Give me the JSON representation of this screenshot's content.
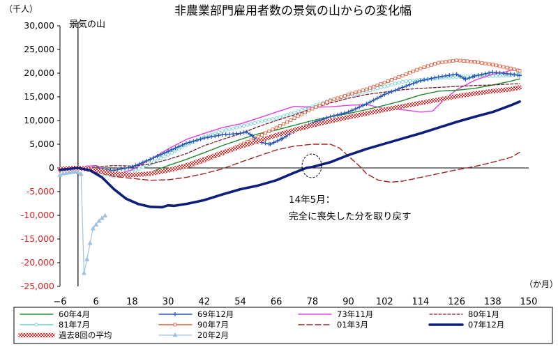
{
  "chart_data": {
    "type": "line",
    "title": "非農業部門雇用者数の景気の山からの変化幅",
    "y_unit_label": "（千人）",
    "x_unit_label": "（か月）",
    "peak_label": "景気の山",
    "annotation": [
      "14年5月：",
      "完全に喪失した分を取り戻す"
    ],
    "xlim": [
      -6,
      150
    ],
    "ylim": [
      -25000,
      30000
    ],
    "x_ticks": [
      -6,
      6,
      18,
      30,
      42,
      54,
      66,
      78,
      90,
      102,
      114,
      126,
      138,
      150
    ],
    "y_ticks": [
      30000,
      25000,
      20000,
      15000,
      10000,
      5000,
      0,
      -5000,
      -10000,
      -15000,
      -20000,
      -25000
    ],
    "y_tick_labels": [
      "30,000",
      "25,000",
      "20,000",
      "15,000",
      "10,000",
      "5,000",
      "0",
      "-5,000",
      "-10,000",
      "-15,000",
      "-20,000",
      "-25,000"
    ],
    "series": [
      {
        "name": "60年4月",
        "color": "#1f8a2a",
        "style": "solid",
        "points": [
          [
            -6,
            -400
          ],
          [
            0,
            0
          ],
          [
            6,
            -300
          ],
          [
            12,
            -1600
          ],
          [
            18,
            -1700
          ],
          [
            24,
            -900
          ],
          [
            30,
            500
          ],
          [
            36,
            1800
          ],
          [
            42,
            3200
          ],
          [
            48,
            4700
          ],
          [
            54,
            6000
          ],
          [
            60,
            7200
          ],
          [
            66,
            8000
          ],
          [
            72,
            9000
          ],
          [
            78,
            10000
          ],
          [
            84,
            10800
          ],
          [
            90,
            11500
          ],
          [
            96,
            12300
          ],
          [
            102,
            13200
          ],
          [
            108,
            14200
          ],
          [
            114,
            15400
          ],
          [
            120,
            16200
          ],
          [
            126,
            16400
          ],
          [
            132,
            16800
          ],
          [
            138,
            17500
          ],
          [
            144,
            18300
          ],
          [
            147,
            18800
          ]
        ]
      },
      {
        "name": "69年12月",
        "color": "#2455b0",
        "style": "plus",
        "points": [
          [
            -6,
            -300
          ],
          [
            0,
            0
          ],
          [
            6,
            -300
          ],
          [
            12,
            -500
          ],
          [
            18,
            200
          ],
          [
            24,
            1800
          ],
          [
            30,
            3500
          ],
          [
            36,
            5200
          ],
          [
            42,
            6300
          ],
          [
            48,
            7000
          ],
          [
            54,
            7300
          ],
          [
            56,
            7600
          ],
          [
            58,
            6800
          ],
          [
            60,
            5500
          ],
          [
            64,
            5000
          ],
          [
            68,
            6200
          ],
          [
            72,
            7800
          ],
          [
            78,
            9500
          ],
          [
            84,
            10800
          ],
          [
            90,
            11800
          ],
          [
            96,
            13500
          ],
          [
            102,
            15500
          ],
          [
            108,
            17000
          ],
          [
            114,
            18400
          ],
          [
            120,
            19200
          ],
          [
            126,
            19800
          ],
          [
            129,
            18700
          ],
          [
            132,
            19400
          ],
          [
            138,
            20200
          ],
          [
            144,
            19800
          ],
          [
            147,
            19500
          ]
        ]
      },
      {
        "name": "73年11月",
        "color": "#e040e0",
        "style": "solid",
        "points": [
          [
            -6,
            -300
          ],
          [
            0,
            0
          ],
          [
            3,
            400
          ],
          [
            6,
            500
          ],
          [
            9,
            -500
          ],
          [
            12,
            -1500
          ],
          [
            18,
            -400
          ],
          [
            24,
            1800
          ],
          [
            30,
            4000
          ],
          [
            36,
            6000
          ],
          [
            42,
            7300
          ],
          [
            48,
            8500
          ],
          [
            54,
            9300
          ],
          [
            60,
            10500
          ],
          [
            66,
            11800
          ],
          [
            72,
            13000
          ],
          [
            78,
            12800
          ],
          [
            84,
            12900
          ],
          [
            90,
            13200
          ],
          [
            96,
            13400
          ],
          [
            102,
            12500
          ],
          [
            108,
            12300
          ],
          [
            114,
            11800
          ],
          [
            118,
            12000
          ],
          [
            122,
            14500
          ],
          [
            126,
            16500
          ],
          [
            132,
            18500
          ],
          [
            138,
            19800
          ],
          [
            142,
            20200
          ],
          [
            145,
            20800
          ]
        ]
      },
      {
        "name": "80年1月",
        "color": "#7a1e2e",
        "style": "dash",
        "points": [
          [
            -6,
            -300
          ],
          [
            0,
            0
          ],
          [
            6,
            200
          ],
          [
            12,
            500
          ],
          [
            18,
            400
          ],
          [
            24,
            800
          ],
          [
            30,
            1800
          ],
          [
            36,
            3000
          ],
          [
            42,
            4700
          ],
          [
            48,
            6000
          ],
          [
            54,
            7200
          ],
          [
            60,
            8700
          ],
          [
            66,
            10000
          ],
          [
            72,
            11200
          ],
          [
            78,
            12500
          ],
          [
            84,
            13700
          ],
          [
            90,
            14700
          ],
          [
            96,
            15500
          ],
          [
            102,
            16000
          ],
          [
            108,
            16500
          ],
          [
            114,
            16800
          ],
          [
            120,
            17000
          ],
          [
            126,
            17200
          ],
          [
            132,
            17400
          ],
          [
            138,
            17500
          ],
          [
            144,
            17700
          ],
          [
            147,
            17800
          ]
        ]
      },
      {
        "name": "81年7月",
        "color": "#66d0d0",
        "style": "circle",
        "points": [
          [
            -6,
            -400
          ],
          [
            0,
            0
          ],
          [
            6,
            -800
          ],
          [
            12,
            -1800
          ],
          [
            18,
            -800
          ],
          [
            24,
            800
          ],
          [
            30,
            2800
          ],
          [
            36,
            4800
          ],
          [
            42,
            6500
          ],
          [
            48,
            7800
          ],
          [
            54,
            8700
          ],
          [
            60,
            9700
          ],
          [
            66,
            10500
          ],
          [
            72,
            11700
          ],
          [
            78,
            13000
          ],
          [
            84,
            14300
          ],
          [
            90,
            15300
          ],
          [
            96,
            16200
          ],
          [
            102,
            17200
          ],
          [
            108,
            18200
          ],
          [
            114,
            18600
          ],
          [
            120,
            18900
          ],
          [
            126,
            19200
          ],
          [
            132,
            19400
          ],
          [
            138,
            19400
          ],
          [
            144,
            19600
          ],
          [
            147,
            19800
          ]
        ]
      },
      {
        "name": "90年7月",
        "color": "#e05a3a",
        "style": "square",
        "points": [
          [
            -6,
            -400
          ],
          [
            0,
            0
          ],
          [
            6,
            -700
          ],
          [
            12,
            -1300
          ],
          [
            18,
            -1500
          ],
          [
            24,
            -1200
          ],
          [
            30,
            -600
          ],
          [
            36,
            200
          ],
          [
            42,
            1500
          ],
          [
            48,
            3000
          ],
          [
            54,
            4800
          ],
          [
            60,
            6600
          ],
          [
            66,
            8500
          ],
          [
            72,
            10500
          ],
          [
            78,
            12500
          ],
          [
            84,
            14200
          ],
          [
            90,
            15500
          ],
          [
            96,
            16600
          ],
          [
            102,
            18000
          ],
          [
            108,
            19500
          ],
          [
            114,
            21000
          ],
          [
            120,
            22200
          ],
          [
            126,
            22700
          ],
          [
            132,
            22400
          ],
          [
            138,
            21800
          ],
          [
            144,
            21000
          ],
          [
            147,
            20500
          ]
        ]
      },
      {
        "name": "01年3月",
        "color": "#a02020",
        "style": "longdash",
        "points": [
          [
            -6,
            -200
          ],
          [
            0,
            0
          ],
          [
            6,
            -900
          ],
          [
            12,
            -1800
          ],
          [
            18,
            -2200
          ],
          [
            24,
            -2600
          ],
          [
            30,
            -2500
          ],
          [
            36,
            -2000
          ],
          [
            42,
            -1200
          ],
          [
            48,
            -200
          ],
          [
            54,
            1200
          ],
          [
            60,
            2500
          ],
          [
            66,
            3800
          ],
          [
            72,
            4600
          ],
          [
            78,
            5000
          ],
          [
            84,
            5000
          ],
          [
            87,
            4200
          ],
          [
            90,
            2500
          ],
          [
            94,
            200
          ],
          [
            96,
            -1200
          ],
          [
            100,
            -2600
          ],
          [
            104,
            -3000
          ],
          [
            108,
            -2800
          ],
          [
            114,
            -2000
          ],
          [
            120,
            -1200
          ],
          [
            126,
            -400
          ],
          [
            132,
            300
          ],
          [
            138,
            1200
          ],
          [
            144,
            2200
          ],
          [
            147,
            3300
          ]
        ]
      },
      {
        "name": "07年12月",
        "color": "#0d1f7a",
        "style": "thick",
        "points": [
          [
            -6,
            -400
          ],
          [
            0,
            0
          ],
          [
            4,
            -500
          ],
          [
            8,
            -2000
          ],
          [
            12,
            -4500
          ],
          [
            16,
            -6500
          ],
          [
            20,
            -7600
          ],
          [
            24,
            -8200
          ],
          [
            28,
            -8300
          ],
          [
            30,
            -7900
          ],
          [
            32,
            -8000
          ],
          [
            36,
            -7600
          ],
          [
            42,
            -6800
          ],
          [
            48,
            -5600
          ],
          [
            54,
            -4500
          ],
          [
            60,
            -3700
          ],
          [
            66,
            -2600
          ],
          [
            72,
            -1000
          ],
          [
            76,
            0
          ],
          [
            78,
            200
          ],
          [
            84,
            1200
          ],
          [
            90,
            2700
          ],
          [
            96,
            4000
          ],
          [
            102,
            5100
          ],
          [
            108,
            6200
          ],
          [
            114,
            7300
          ],
          [
            120,
            8500
          ],
          [
            126,
            9700
          ],
          [
            132,
            10800
          ],
          [
            138,
            11800
          ],
          [
            144,
            13200
          ],
          [
            147,
            14000
          ]
        ]
      },
      {
        "name": "過去8回の平均",
        "color": "#f03030",
        "style": "avg",
        "points": [
          [
            -6,
            -200
          ],
          [
            0,
            0
          ],
          [
            6,
            -500
          ],
          [
            12,
            -1200
          ],
          [
            18,
            -1500
          ],
          [
            24,
            -1200
          ],
          [
            30,
            -500
          ],
          [
            36,
            500
          ],
          [
            42,
            1800
          ],
          [
            48,
            3200
          ],
          [
            54,
            4500
          ],
          [
            60,
            5700
          ],
          [
            66,
            6900
          ],
          [
            72,
            8000
          ],
          [
            78,
            9000
          ],
          [
            84,
            9900
          ],
          [
            90,
            10700
          ],
          [
            96,
            11500
          ],
          [
            102,
            12300
          ],
          [
            108,
            13000
          ],
          [
            114,
            13700
          ],
          [
            120,
            14400
          ],
          [
            126,
            15100
          ],
          [
            132,
            15700
          ],
          [
            138,
            16200
          ],
          [
            144,
            16600
          ],
          [
            147,
            17000
          ]
        ]
      },
      {
        "name": "20年2月",
        "color": "#9ec2e0",
        "style": "triangle",
        "points": [
          [
            -6,
            -1500
          ],
          [
            -5,
            -1200
          ],
          [
            -4,
            -1100
          ],
          [
            -3,
            -1000
          ],
          [
            -2,
            -900
          ],
          [
            -1,
            -800
          ],
          [
            0,
            -900
          ],
          [
            1,
            -1300
          ],
          [
            2,
            -22200
          ],
          [
            3,
            -19300
          ],
          [
            4,
            -15900
          ],
          [
            5,
            -12800
          ],
          [
            6,
            -12000
          ],
          [
            7,
            -11200
          ],
          [
            8,
            -10600
          ],
          [
            9,
            -10100
          ]
        ]
      }
    ]
  }
}
